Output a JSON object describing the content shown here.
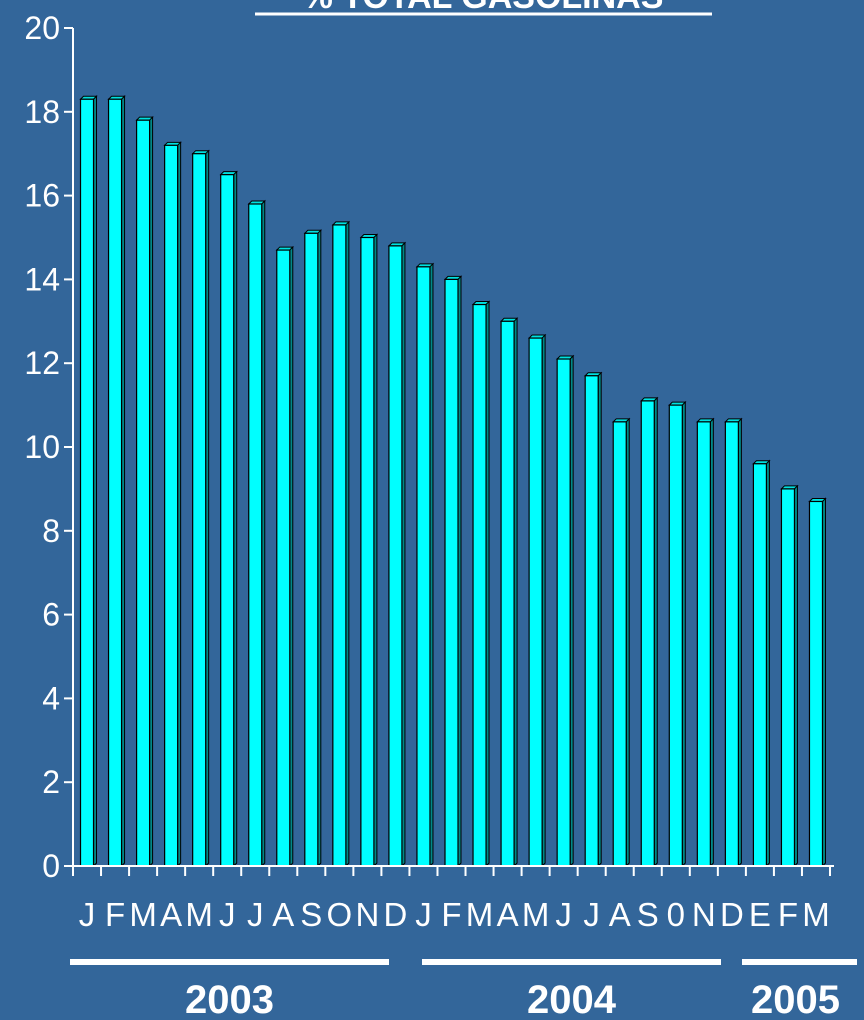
{
  "chart_data": {
    "type": "bar",
    "title": "% TOTAL GASOLINAS",
    "categories": [
      "J",
      "F",
      "M",
      "A",
      "M",
      "J",
      "J",
      "A",
      "S",
      "O",
      "N",
      "D",
      "J",
      "F",
      "M",
      "A",
      "M",
      "J",
      "J",
      "A",
      "S",
      "0",
      "N",
      "D",
      "E",
      "F",
      "M"
    ],
    "values": [
      18.3,
      18.3,
      17.8,
      17.2,
      17.0,
      16.5,
      15.8,
      14.7,
      15.1,
      15.3,
      15.0,
      14.8,
      14.3,
      14.0,
      13.4,
      13.0,
      12.6,
      12.1,
      11.7,
      10.6,
      11.1,
      11.0,
      10.6,
      10.6,
      9.6,
      9.0,
      8.7
    ],
    "ylim": [
      0,
      20
    ],
    "yticks": [
      0,
      2,
      4,
      6,
      8,
      10,
      12,
      14,
      16,
      18,
      20
    ],
    "xlabel": "",
    "ylabel": "",
    "bar_color": "#00ffff",
    "background": "#33669a",
    "year_groups": [
      {
        "label": "2003",
        "start": 0,
        "end": 11
      },
      {
        "label": "2004",
        "start": 12,
        "end": 23
      },
      {
        "label": "2005",
        "start": 24,
        "end": 26
      }
    ]
  }
}
